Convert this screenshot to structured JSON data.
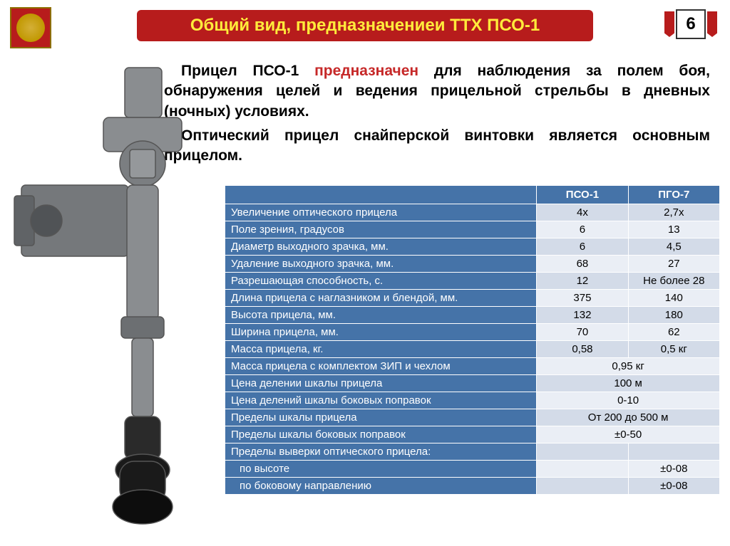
{
  "page_number": "6",
  "title": "Общий вид, предназначениеи ТТХ  ПСО-1",
  "intro": {
    "line1_prefix": "Прицел ПСО-1 ",
    "line1_red": "предназначен",
    "line1_suffix": " для наблюдения за полем боя, обнаружения целей и ведения прицельной стрельбы в дневных (ночных) условиях.",
    "line2": "Оптический прицел снайперской винтовки является основным прицелом."
  },
  "table": {
    "headers": [
      "",
      "ПСО-1",
      "ПГО-7"
    ],
    "rows": [
      {
        "label": "Увеличение оптического прицела",
        "c1": "4х",
        "c2": "2,7х"
      },
      {
        "label": "Поле зрения, градусов",
        "c1": "6",
        "c2": "13"
      },
      {
        "label": "Диаметр выходного зрачка, мм.",
        "c1": "6",
        "c2": "4,5"
      },
      {
        "label": "Удаление выходного зрачка, мм.",
        "c1": "68",
        "c2": "27"
      },
      {
        "label": "Разрешающая способность, с.",
        "c1": "12",
        "c2": "Не более 28"
      },
      {
        "label": "Длина прицела с наглазником и блендой, мм.",
        "c1": "375",
        "c2": "140"
      },
      {
        "label": "Высота прицела, мм.",
        "c1": "132",
        "c2": "180"
      },
      {
        "label": "Ширина прицела, мм.",
        "c1": "70",
        "c2": "62"
      },
      {
        "label": "Масса прицела, кг.",
        "c1": "0,58",
        "c2": "0,5 кг"
      },
      {
        "label": "Масса прицела с комплектом ЗИП и чехлом",
        "merged": "0,95 кг"
      },
      {
        "label": "Цена делении шкалы прицела",
        "merged": "100 м"
      },
      {
        "label": "Цена делений шкалы боковых поправок",
        "merged": "0-10"
      },
      {
        "label": "Пределы шкалы прицела",
        "merged": "От 200 до 500 м"
      },
      {
        "label": "Пределы шкалы боковых поправок",
        "merged": "±0-50"
      },
      {
        "label": "Пределы выверки оптического прицела:",
        "c1": "",
        "c2": ""
      },
      {
        "label": "по высоте",
        "c1": "",
        "c2": "±0-08",
        "sub": true
      },
      {
        "label": "по боковому направлению",
        "c1": "",
        "c2": "±0-08",
        "sub": true
      }
    ]
  },
  "colors": {
    "header_bg": "#b71c1c",
    "header_text": "#ffeb3b",
    "table_header_bg": "#4573a8",
    "row_odd": "#d3dbe8",
    "row_even": "#eaeef5",
    "accent_red": "#c62828"
  }
}
